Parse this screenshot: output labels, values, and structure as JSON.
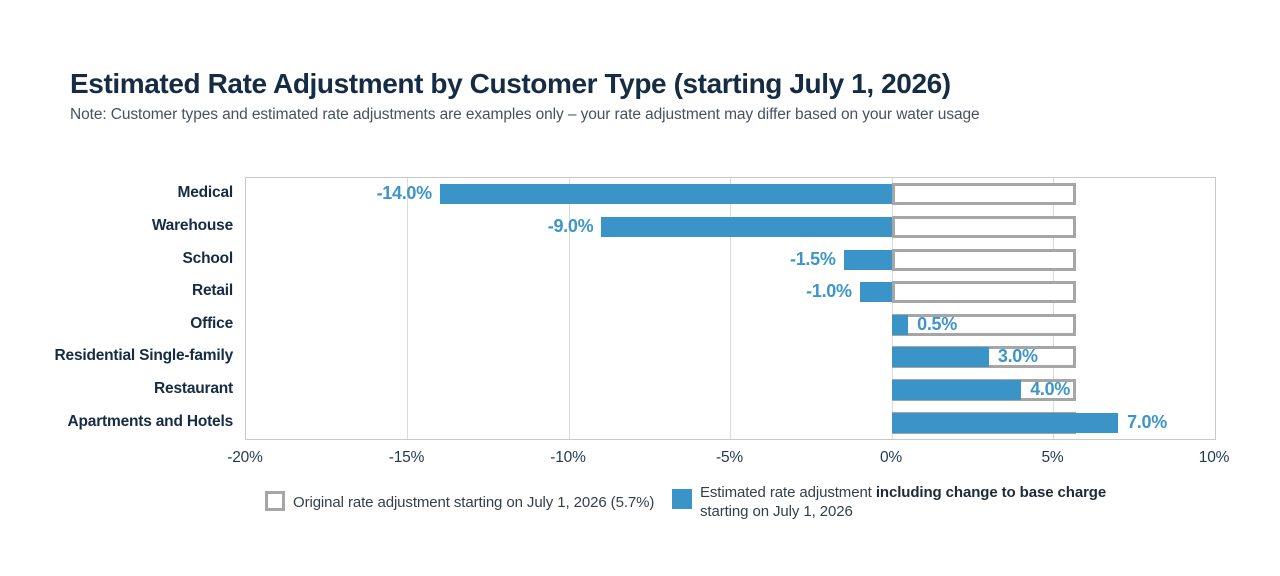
{
  "header": {
    "title": "Estimated Rate Adjustment by Customer Type (starting July 1, 2026)",
    "note": "Note: Customer types and estimated rate adjustments are examples only – your rate adjustment may differ based on your water usage"
  },
  "chart_data": {
    "type": "bar",
    "orientation": "horizontal",
    "title": "Estimated Rate Adjustment by Customer Type (starting July 1, 2026)",
    "categories": [
      "Medical",
      "Warehouse",
      "School",
      "Retail",
      "Office",
      "Residential Single-family",
      "Restaurant",
      "Apartments and Hotels"
    ],
    "series": [
      {
        "name": "Original rate adjustment starting on July 1, 2026 (5.7%)",
        "style": "outlined-box",
        "values": [
          5.7,
          5.7,
          5.7,
          5.7,
          5.7,
          5.7,
          5.7,
          5.7
        ]
      },
      {
        "name": "Estimated rate adjustment including change to base charge starting on July 1, 2026",
        "style": "filled-bar",
        "values": [
          -14.0,
          -9.0,
          -1.5,
          -1.0,
          0.5,
          3.0,
          4.0,
          7.0
        ]
      }
    ],
    "value_labels": [
      "-14.0%",
      "-9.0%",
      "-1.5%",
      "-1.0%",
      "0.5%",
      "3.0%",
      "4.0%",
      "7.0%"
    ],
    "xlim": [
      -20,
      10
    ],
    "xticks": [
      {
        "value": -20,
        "label": "-20%"
      },
      {
        "value": -15,
        "label": "-15%"
      },
      {
        "value": -10,
        "label": "-10%"
      },
      {
        "value": -5,
        "label": "-5%"
      },
      {
        "value": 0,
        "label": "0%"
      },
      {
        "value": 5,
        "label": "5%"
      },
      {
        "value": 10,
        "label": "10%"
      }
    ],
    "grid": true,
    "legend_position": "bottom"
  },
  "legend": {
    "original_label": "Original rate adjustment starting on July 1, 2026 (5.7%)",
    "estimated_prefix": "Estimated rate adjustment ",
    "estimated_bold": "including change to base charge",
    "estimated_line2": "starting on July 1, 2026"
  },
  "colors": {
    "bar_blue": "#3B94C8",
    "value_label_blue": "#3E95CA",
    "box_outline_gray": "#A6A6A6",
    "title_navy": "#152C44",
    "gridline_gray": "#DBDBDB",
    "note_gray": "#46535F"
  }
}
